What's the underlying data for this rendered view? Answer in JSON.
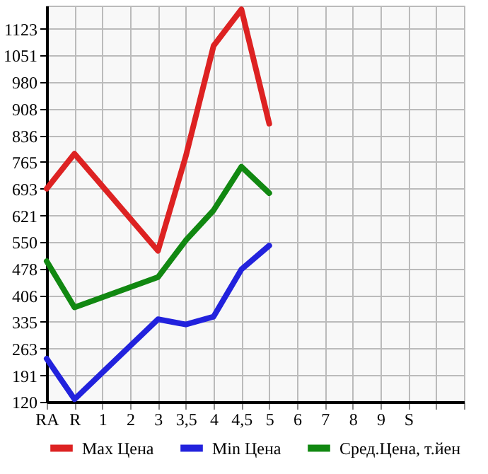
{
  "chart_data": {
    "type": "line",
    "categories": [
      "RA",
      "R",
      "1",
      "2",
      "3",
      "3,5",
      "4",
      "4,5",
      "5",
      "6",
      "7",
      "8",
      "9",
      "S",
      null,
      null
    ],
    "series": [
      {
        "name": "Max Цена",
        "color": "#dd2222",
        "values": [
          693,
          787,
          null,
          null,
          526,
          780,
          1077,
          1175,
          868,
          null,
          null,
          null,
          null,
          null,
          null,
          null
        ]
      },
      {
        "name": "Min Цена",
        "color": "#2222dd",
        "values": [
          236,
          127,
          null,
          null,
          342,
          328,
          349,
          476,
          540,
          null,
          null,
          null,
          null,
          null,
          null,
          null
        ]
      },
      {
        "name": "Сред.Цена, т.йен",
        "color": "#118811",
        "values": [
          498,
          374,
          null,
          null,
          455,
          554,
          635,
          752,
          681,
          null,
          null,
          null,
          null,
          null,
          null,
          null
        ]
      }
    ],
    "ylim": [
      120,
      1185
    ],
    "yticks": [
      120,
      191,
      263,
      335,
      406,
      478,
      550,
      621,
      693,
      765,
      836,
      908,
      980,
      1051,
      1123
    ],
    "grid": true,
    "legend": "bottom",
    "line_style": "solid",
    "marker": "none"
  }
}
